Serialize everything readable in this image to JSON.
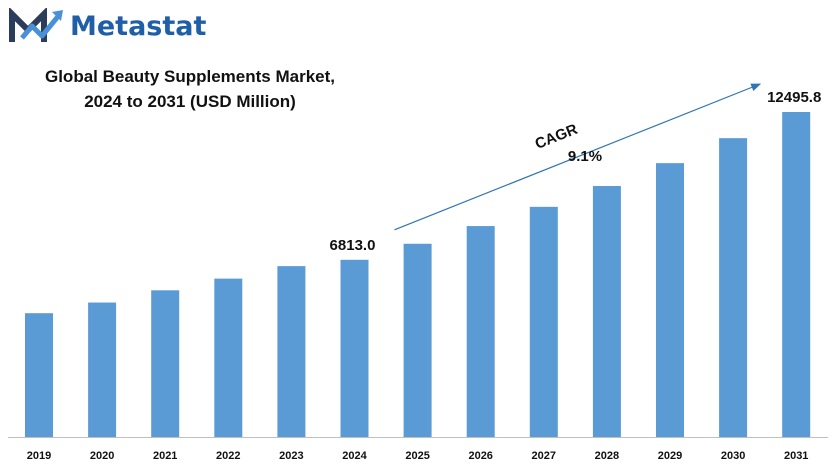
{
  "brand": {
    "name": "Metastat"
  },
  "colors": {
    "bar": "#5b9bd5",
    "brand": "#1f5fa8",
    "arrow": "#2e75b6",
    "axis": "#bfbfbf"
  },
  "chart_data": {
    "type": "bar",
    "title_line1": "Global Beauty Supplements Market,",
    "title_line2": "2024 to 2031 (USD Million)",
    "categories": [
      "2019",
      "2020",
      "2021",
      "2022",
      "2023",
      "2024",
      "2025",
      "2026",
      "2027",
      "2028",
      "2029",
      "2030",
      "2031"
    ],
    "values": [
      4760,
      5170,
      5640,
      6090,
      6570,
      6813.0,
      7430,
      8110,
      8850,
      9650,
      10530,
      11490,
      12495.8
    ],
    "data_labels": [
      {
        "category": "2024",
        "text": "6813.0"
      },
      {
        "category": "2031",
        "text": "12495.8"
      }
    ],
    "annotation": {
      "label": "CAGR",
      "value": "9.1%",
      "from": "2024",
      "to": "2031"
    },
    "ylim": [
      0,
      12495.8
    ],
    "xlabel": "",
    "ylabel": "",
    "legend": "none",
    "grid": false
  }
}
